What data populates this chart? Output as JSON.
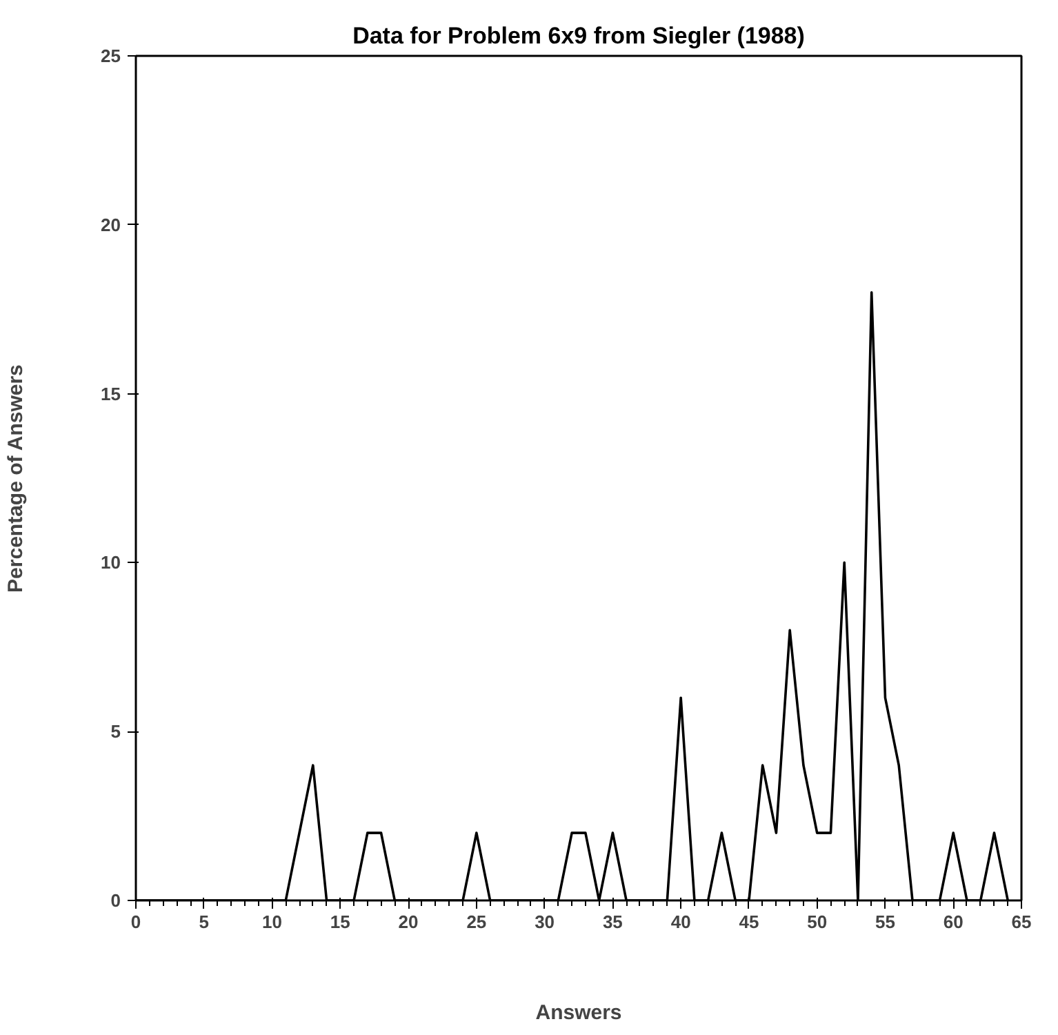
{
  "chart_data": {
    "type": "line",
    "title": "Data for Problem 6x9 from Siegler (1988)",
    "xlabel": "Answers",
    "ylabel": "Percentage of Answers",
    "x": [
      0,
      1,
      2,
      3,
      4,
      5,
      6,
      7,
      8,
      9,
      10,
      11,
      12,
      13,
      14,
      15,
      16,
      17,
      18,
      19,
      20,
      21,
      22,
      23,
      24,
      25,
      26,
      27,
      28,
      29,
      30,
      31,
      32,
      33,
      34,
      35,
      36,
      37,
      38,
      39,
      40,
      41,
      42,
      43,
      44,
      45,
      46,
      47,
      48,
      49,
      50,
      51,
      52,
      53,
      54,
      55,
      56,
      57,
      58,
      59,
      60,
      61,
      62,
      63,
      64
    ],
    "series": [
      {
        "color": "#000000",
        "values": [
          0,
          0,
          0,
          0,
          0,
          0,
          0,
          0,
          0,
          0,
          0,
          0,
          2,
          4,
          0,
          0,
          0,
          2,
          2,
          0,
          0,
          0,
          0,
          0,
          0,
          2,
          0,
          0,
          0,
          0,
          0,
          0,
          2,
          2,
          0,
          2,
          0,
          0,
          0,
          0,
          6,
          0,
          0,
          2,
          0,
          0,
          4,
          2,
          8,
          4,
          2,
          2,
          10,
          0,
          18,
          6,
          4,
          0,
          0,
          0,
          2,
          0,
          0,
          2,
          0
        ]
      }
    ],
    "xlim": [
      0,
      65
    ],
    "ylim": [
      0,
      25
    ],
    "xticks": [
      0,
      5,
      10,
      15,
      20,
      25,
      30,
      35,
      40,
      45,
      50,
      55,
      60,
      65
    ],
    "yticks": [
      0,
      5,
      10,
      15,
      20,
      25
    ],
    "grid": false,
    "marker": "none",
    "line_style": "solid"
  }
}
